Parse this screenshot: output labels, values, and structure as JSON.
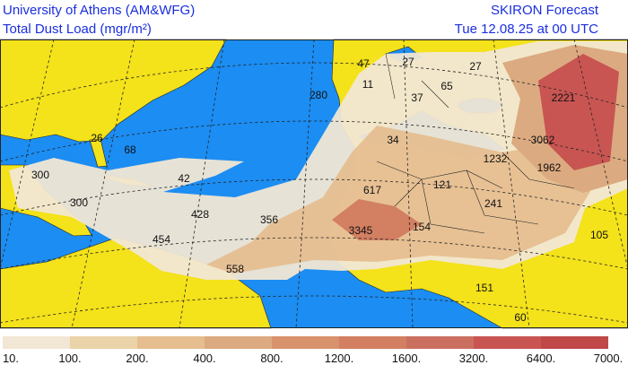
{
  "header": {
    "institution": "University of Athens (AM&WFG)",
    "product": "Total Dust Load (mgr/m²)",
    "model": "SKIRON Forecast",
    "valid_time": "Tue 12.08.25 at 00 UTC"
  },
  "legend": {
    "labels": [
      "10.",
      "100.",
      "200.",
      "400.",
      "800.",
      "1200.",
      "1600.",
      "3200.",
      "6400.",
      "7000."
    ],
    "colors": [
      "#f1e7d4",
      "#ead3a8",
      "#e6bd8e",
      "#dcaa80",
      "#d8926c",
      "#d27f62",
      "#cb7060",
      "#c85552",
      "#c04848"
    ]
  },
  "map": {
    "labels": [
      "47",
      "27",
      "27",
      "280",
      "11",
      "37",
      "65",
      "2221",
      "26",
      "68",
      "34",
      "3062",
      "1232",
      "1962",
      "300",
      "42",
      "121",
      "617",
      "300",
      "241",
      "428",
      "356",
      "3345",
      "154",
      "454",
      "105",
      "558",
      "151",
      "60"
    ]
  }
}
